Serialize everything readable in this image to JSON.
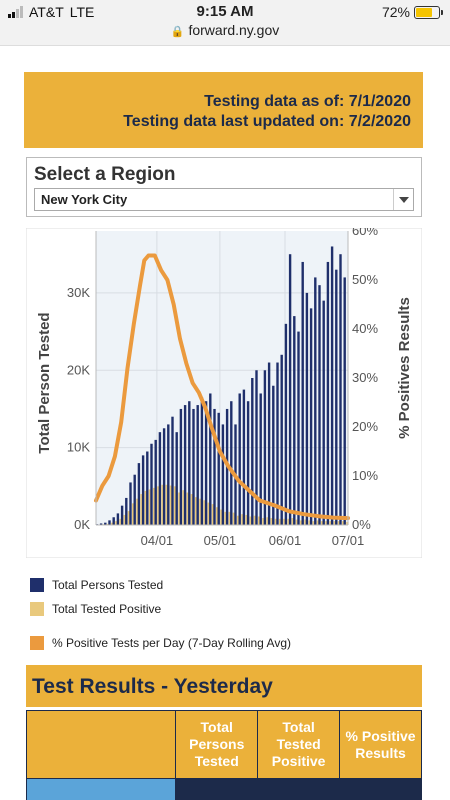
{
  "status_bar": {
    "carrier": "AT&T",
    "network": "LTE",
    "time": "9:15 AM",
    "battery": "72%",
    "battery_level": 0.72
  },
  "browser": {
    "url": "forward.ny.gov"
  },
  "banner": {
    "as_of": "Testing data as of: 7/1/2020",
    "updated": "Testing data last updated on: 7/2/2020"
  },
  "region": {
    "title": "Select a Region",
    "selected": "New York City"
  },
  "chart_data": {
    "type": "bar",
    "xlabel": "",
    "ylabel_left": "Total Person Tested",
    "ylabel_right": "% Positives Results",
    "y_left_ticks": [
      "0K",
      "10K",
      "20K",
      "30K"
    ],
    "y_left_range": [
      0,
      38000
    ],
    "y_right_ticks": [
      "0%",
      "10%",
      "20%",
      "30%",
      "40%",
      "50%",
      "60%"
    ],
    "y_right_range": [
      0,
      60
    ],
    "x_ticks": [
      "04/01",
      "05/01",
      "06/01",
      "07/01"
    ],
    "x_range": [
      "2020-03-03",
      "2020-07-01"
    ],
    "grid": true,
    "legend_position": "bottom",
    "series": [
      {
        "name": "Total Persons Tested",
        "type": "bar",
        "color": "#1f2f6b",
        "dates": [
          "2020-03-04",
          "2020-03-06",
          "2020-03-08",
          "2020-03-10",
          "2020-03-12",
          "2020-03-14",
          "2020-03-16",
          "2020-03-18",
          "2020-03-20",
          "2020-03-22",
          "2020-03-24",
          "2020-03-26",
          "2020-03-28",
          "2020-03-30",
          "2020-04-01",
          "2020-04-03",
          "2020-04-05",
          "2020-04-07",
          "2020-04-09",
          "2020-04-11",
          "2020-04-13",
          "2020-04-15",
          "2020-04-17",
          "2020-04-19",
          "2020-04-21",
          "2020-04-23",
          "2020-04-25",
          "2020-04-27",
          "2020-04-29",
          "2020-05-01",
          "2020-05-03",
          "2020-05-05",
          "2020-05-07",
          "2020-05-09",
          "2020-05-11",
          "2020-05-13",
          "2020-05-15",
          "2020-05-17",
          "2020-05-19",
          "2020-05-21",
          "2020-05-23",
          "2020-05-25",
          "2020-05-27",
          "2020-05-29",
          "2020-05-31",
          "2020-06-02",
          "2020-06-04",
          "2020-06-06",
          "2020-06-08",
          "2020-06-10",
          "2020-06-12",
          "2020-06-14",
          "2020-06-16",
          "2020-06-18",
          "2020-06-20",
          "2020-06-22",
          "2020-06-24",
          "2020-06-26",
          "2020-06-28",
          "2020-06-30"
        ],
        "values": [
          100,
          200,
          300,
          600,
          1000,
          1500,
          2500,
          3500,
          5500,
          6500,
          8000,
          9000,
          9500,
          10500,
          11000,
          12000,
          12500,
          13000,
          14000,
          12000,
          15000,
          15500,
          16000,
          15000,
          15500,
          16500,
          16000,
          17000,
          15000,
          14500,
          13000,
          15000,
          16000,
          13000,
          17000,
          17500,
          16000,
          19000,
          20000,
          17000,
          20000,
          21000,
          18000,
          21000,
          22000,
          26000,
          35000,
          27000,
          25000,
          34000,
          30000,
          28000,
          32000,
          31000,
          29000,
          34000,
          36000,
          33000,
          35000,
          32000
        ]
      },
      {
        "name": "Total Tested Positive",
        "type": "bar",
        "color": "#e9c97d",
        "values": [
          50,
          100,
          150,
          300,
          500,
          800,
          1300,
          1800,
          2800,
          3400,
          4000,
          4400,
          4600,
          4800,
          5000,
          5200,
          5200,
          5100,
          5000,
          4200,
          4500,
          4200,
          4000,
          3600,
          3400,
          3200,
          2900,
          2700,
          2300,
          2000,
          1700,
          1700,
          1600,
          1200,
          1400,
          1300,
          1100,
          1200,
          1100,
          900,
          1000,
          900,
          800,
          800,
          800,
          800,
          900,
          700,
          600,
          700,
          600,
          500,
          600,
          500,
          500,
          500,
          500,
          500,
          500,
          400
        ]
      },
      {
        "name": "% Positive Tests per Day (7-Day Rolling Avg)",
        "type": "line",
        "axis": "right",
        "color": "#eb9a3e",
        "x": [
          "2020-03-03",
          "2020-03-06",
          "2020-03-09",
          "2020-03-12",
          "2020-03-15",
          "2020-03-18",
          "2020-03-21",
          "2020-03-24",
          "2020-03-26",
          "2020-03-28",
          "2020-03-31",
          "2020-04-03",
          "2020-04-06",
          "2020-04-09",
          "2020-04-12",
          "2020-04-15",
          "2020-04-18",
          "2020-04-21",
          "2020-04-24",
          "2020-04-27",
          "2020-05-01",
          "2020-05-05",
          "2020-05-10",
          "2020-05-15",
          "2020-05-20",
          "2020-05-27",
          "2020-06-03",
          "2020-06-10",
          "2020-06-17",
          "2020-06-24",
          "2020-07-01"
        ],
        "y": [
          5,
          8,
          10,
          14,
          21,
          32,
          41,
          49,
          54,
          55,
          55,
          52,
          50,
          45,
          38,
          33,
          29,
          27,
          24,
          20,
          15,
          12,
          9,
          7,
          5,
          4,
          2.8,
          2.2,
          1.8,
          1.5,
          1.4
        ]
      }
    ]
  },
  "legend": [
    {
      "label": "Total Persons Tested",
      "color": "#1f2f6b"
    },
    {
      "label": "Total Tested Positive",
      "color": "#e9c97d"
    },
    {
      "label": "% Positive Tests per Day (7-Day Rolling Avg)",
      "color": "#eb9a3e"
    }
  ],
  "results": {
    "title": "Test Results - Yesterday",
    "columns": [
      "",
      "Total Persons Tested",
      "Total Tested Positive",
      "% Positive Results"
    ]
  }
}
